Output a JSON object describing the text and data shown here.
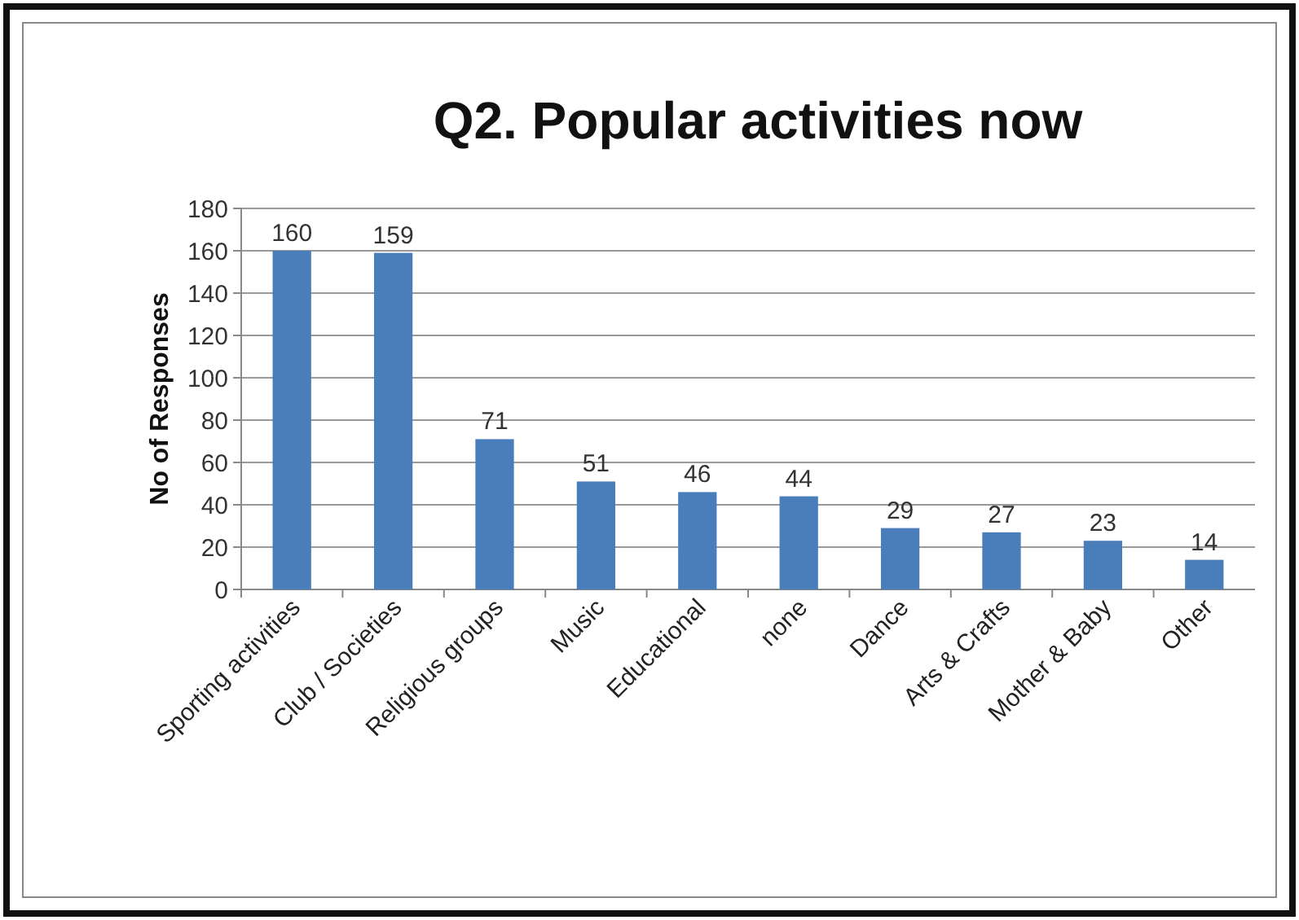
{
  "chart_data": {
    "type": "bar",
    "title": "Q2.  Popular activities now",
    "ylabel": "No of Responses",
    "categories": [
      "Sporting activities",
      "Club / Societies",
      "Religious groups",
      "Music",
      "Educational",
      "none",
      "Dance",
      "Arts & Crafts",
      "Mother & Baby",
      "Other"
    ],
    "values": [
      160,
      159,
      71,
      51,
      46,
      44,
      29,
      27,
      23,
      14
    ],
    "color": "#4a7ebb",
    "ylim": [
      0,
      180
    ],
    "yticks": [
      0,
      20,
      40,
      60,
      80,
      100,
      120,
      140,
      160,
      180
    ],
    "grid": "y",
    "data_labels": true
  }
}
